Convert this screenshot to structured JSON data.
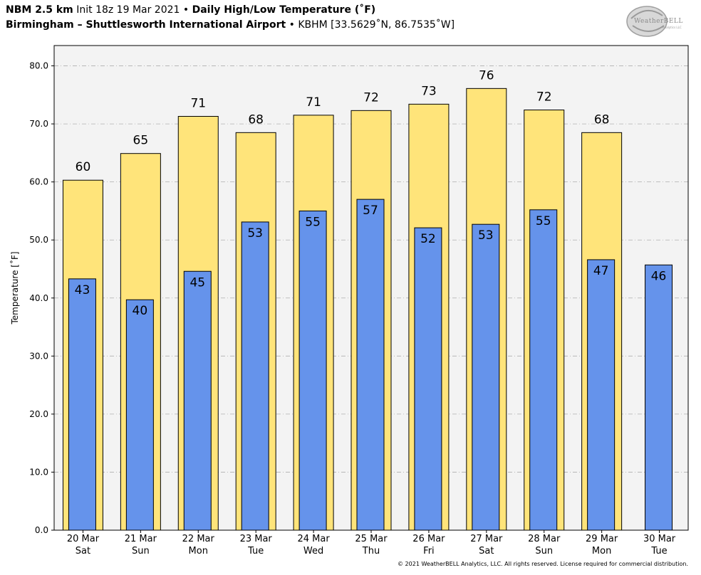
{
  "header": {
    "line1_bold": "NBM 2.5 km",
    "line1_init": "Init 18z 19 Mar 2021",
    "line1_sep": "•",
    "line1_title": "Daily High/Low Temperature (˚F)",
    "line2_bold": "Birmingham – Shuttlesworth International Airport",
    "line2_sep": "•",
    "line2_rest": "KBHM [33.5629˚N, 86.7535˚W]"
  },
  "logo": {
    "text": "WeatherBELL",
    "subtext": "Analytics LLC"
  },
  "footer": "© 2021 WeatherBELL Analytics, LLC. All rights reserved. License required for commercial distribution.",
  "colors": {
    "high": "#ffe47a",
    "low": "#6593eb",
    "plot_bg": "#f3f3f3",
    "grid": "#b0b0b0"
  },
  "chart_data": {
    "type": "bar",
    "title": "Daily High/Low Temperature (˚F)",
    "ylabel": "Temperature [˚F]",
    "xlabel": "",
    "ylim": [
      0,
      83.5
    ],
    "yticks": [
      "0.0",
      "10.0",
      "20.0",
      "30.0",
      "40.0",
      "50.0",
      "60.0",
      "70.0",
      "80.0"
    ],
    "grid": true,
    "categories": [
      {
        "date": "20 Mar",
        "day": "Sat"
      },
      {
        "date": "21 Mar",
        "day": "Sun"
      },
      {
        "date": "22 Mar",
        "day": "Mon"
      },
      {
        "date": "23 Mar",
        "day": "Tue"
      },
      {
        "date": "24 Mar",
        "day": "Wed"
      },
      {
        "date": "25 Mar",
        "day": "Thu"
      },
      {
        "date": "26 Mar",
        "day": "Fri"
      },
      {
        "date": "27 Mar",
        "day": "Sat"
      },
      {
        "date": "28 Mar",
        "day": "Sun"
      },
      {
        "date": "29 Mar",
        "day": "Mon"
      },
      {
        "date": "30 Mar",
        "day": "Tue"
      }
    ],
    "series": [
      {
        "values": [
          60.3,
          64.9,
          71.3,
          68.5,
          71.5,
          72.3,
          73.4,
          76.1,
          72.4,
          68.5,
          null
        ],
        "labels": [
          "60",
          "65",
          "71",
          "68",
          "71",
          "72",
          "73",
          "76",
          "72",
          "68",
          ""
        ]
      },
      {
        "values": [
          43.3,
          39.7,
          44.6,
          53.1,
          55.0,
          57.0,
          52.1,
          52.7,
          55.2,
          46.6,
          45.7
        ],
        "labels": [
          "43",
          "40",
          "45",
          "53",
          "55",
          "57",
          "52",
          "53",
          "55",
          "47",
          "46"
        ]
      }
    ]
  }
}
